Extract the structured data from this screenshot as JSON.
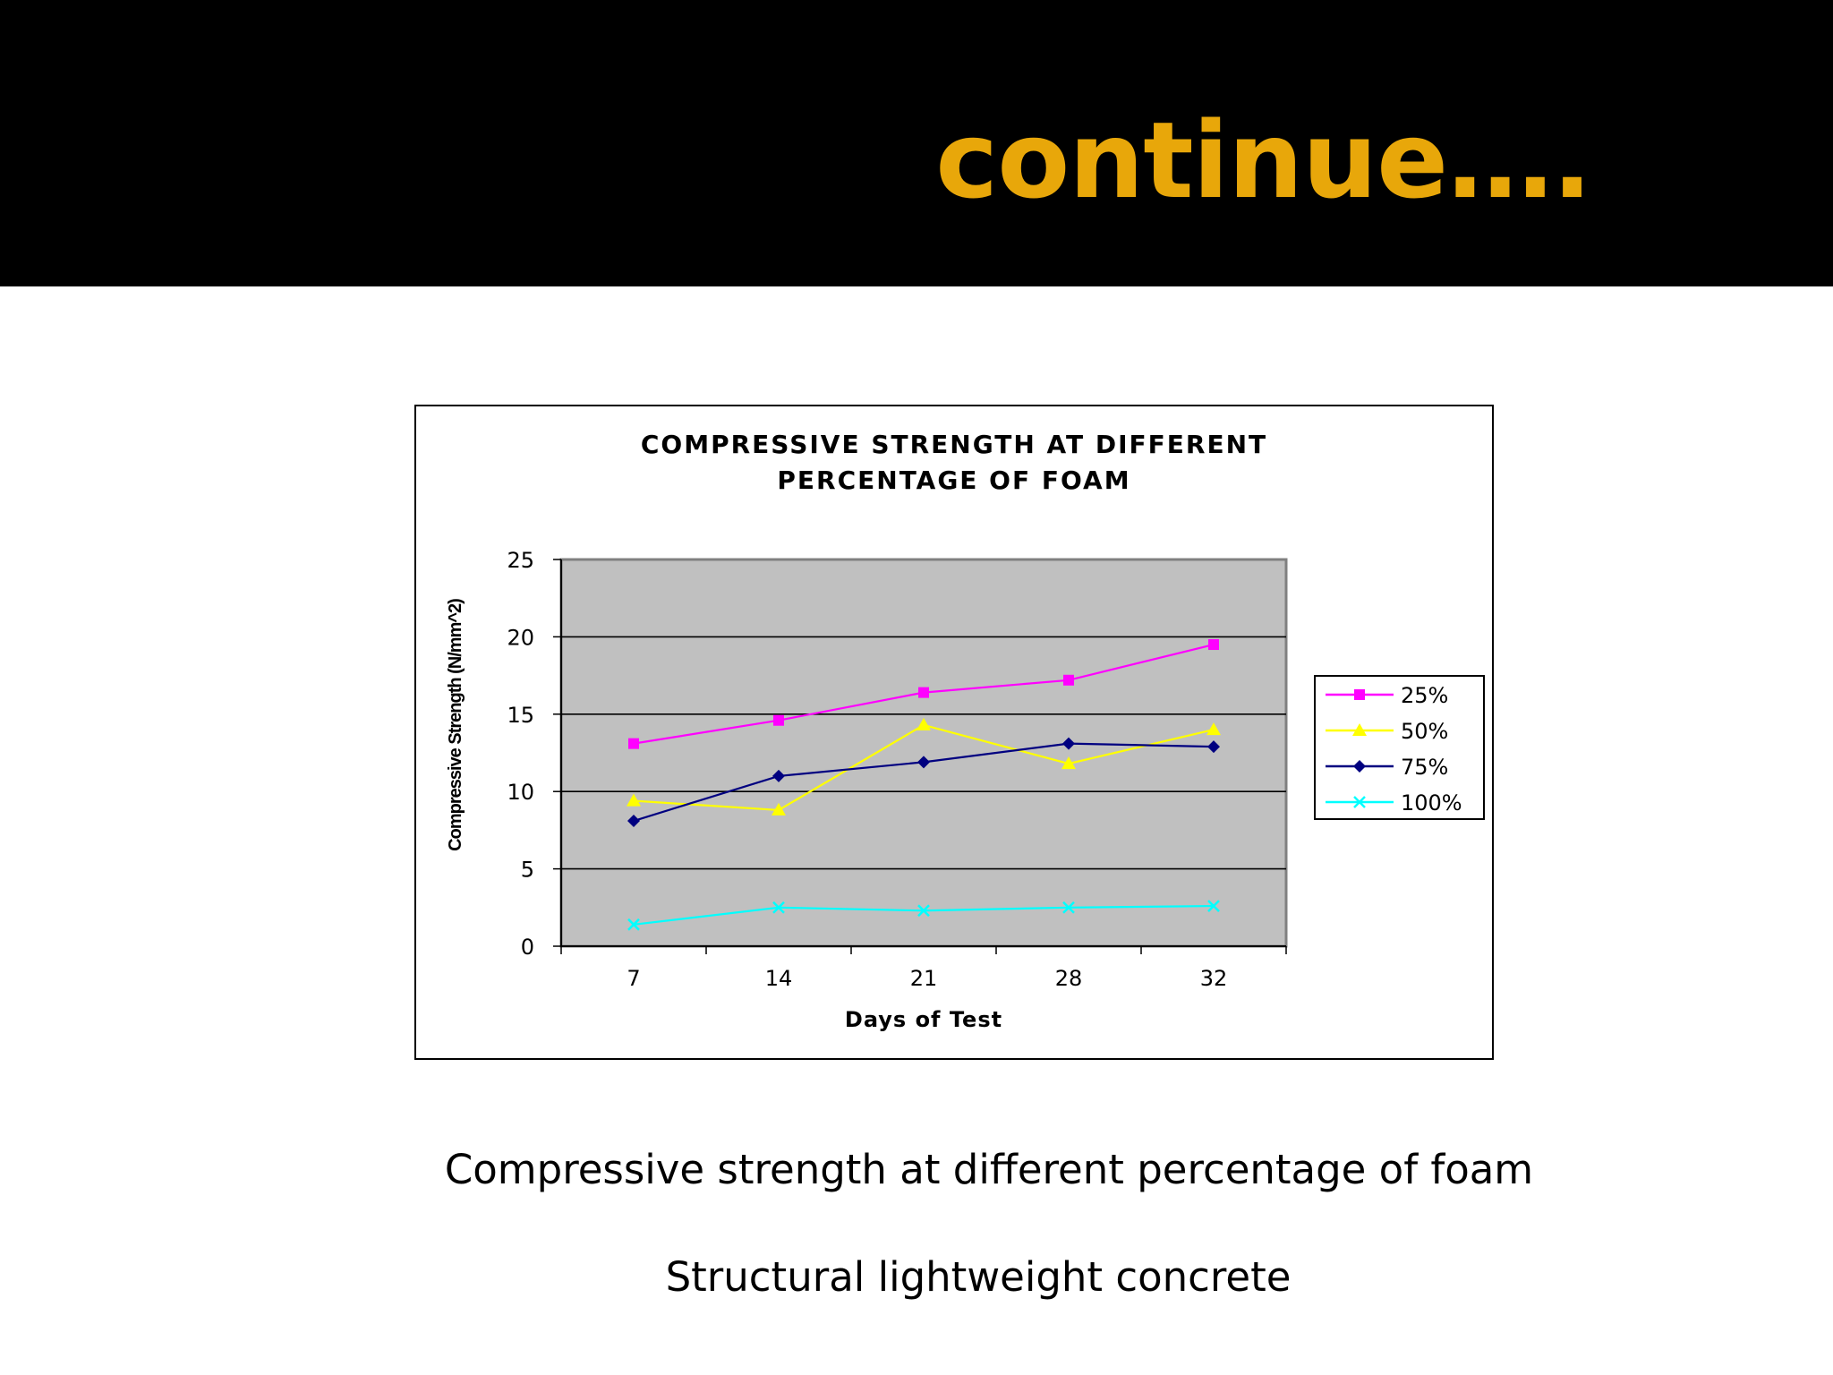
{
  "slide": {
    "title": "continue….",
    "caption_1": "Compressive strength  at different percentage of foam",
    "caption_2": "Structural lightweight concrete",
    "title_color": "#e8a70a",
    "band_color": "#000000"
  },
  "chart_data": {
    "type": "line",
    "title_lines": [
      "COMPRESSIVE STRENGTH AT DIFFERENT",
      "PERCENTAGE OF FOAM"
    ],
    "xlabel": "Days of Test",
    "ylabel": "Compressive Strength (N/mm^2)",
    "categories": [
      "7",
      "14",
      "21",
      "28",
      "32"
    ],
    "ylim": [
      0,
      25
    ],
    "yticks": [
      0,
      5,
      10,
      15,
      20,
      25
    ],
    "grid": "horizontal",
    "plot_background": "#c0c0c0",
    "legend_position": "right",
    "series": [
      {
        "name": "25%",
        "values": [
          13.1,
          14.6,
          16.4,
          17.2,
          19.5
        ],
        "color": "#ff00ff",
        "marker": "square"
      },
      {
        "name": "50%",
        "values": [
          9.4,
          8.8,
          14.3,
          11.8,
          14.0
        ],
        "color": "#ffff00",
        "marker": "triangle"
      },
      {
        "name": "75%",
        "values": [
          8.1,
          11.0,
          11.9,
          13.1,
          12.9
        ],
        "color": "#000080",
        "marker": "diamond"
      },
      {
        "name": "100%",
        "values": [
          1.4,
          2.5,
          2.3,
          2.5,
          2.6
        ],
        "color": "#00ffff",
        "marker": "x"
      }
    ]
  }
}
